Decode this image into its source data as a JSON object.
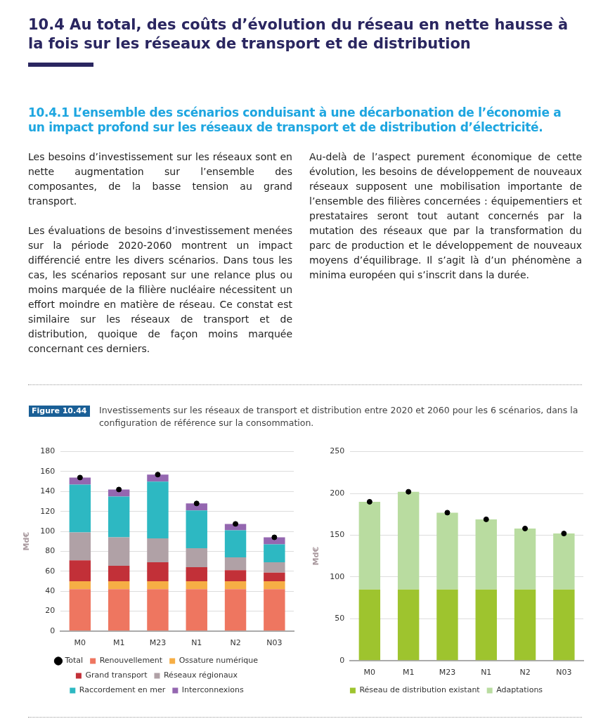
{
  "chart_data": [
    {
      "type": "bar",
      "title": "Investissements sur les réseaux de transport et distribution entre 2020 et 2060 pour les 6 scénarios, dans la configuration de référence sur la consommation.",
      "annotations": [
        "10.4   Au total, des coûts d’évolution du réseau en nette hausse à la fois sur les réseaux de transport et de distribution",
        "10.4.1  L’ensemble des scénarios conduisant à une décarbonation de l’économie a un impact profond sur les réseaux de transport et de distribution d’électricité.",
        "Les besoins d’investissement sur les réseaux sont en nette augmentation sur l’ensemble des composantes, de la basse tension au grand transport.",
        "Les évaluations de besoins d’investissement menées sur la période 2020-2060 montrent un impact différencié entre les divers scénarios. Dans tous les cas, les scénarios reposant sur une relance plus ou moins marquée de la filière nucléaire nécessitent un effort moindre en matière de réseau. Ce constat est similaire sur les réseaux de transport et de distribution, quoique de façon moins marquée concernant ces derniers.",
        "Au-delà de l’aspect purement économique de cette évolution, les besoins de développement de nouveaux réseaux supposent une mobilisation importante de l’ensemble des filières concernées : équipementiers et prestataires seront tout autant concernés par la mutation des réseaux que par la transformation du parc de production et le développement de nouveaux moyens d’équilibrage. Il s’agit là d’un phénomène a minima européen qui s’inscrit dans la durée.",
        "Figure 10.44"
      ],
      "categories": [
        "M0",
        "M1",
        "M23",
        "N1",
        "N2",
        "N03"
      ],
      "stacked": true,
      "ylabel": "Md€",
      "ylim": [
        0,
        180
      ],
      "yticks": [
        0,
        20,
        40,
        60,
        80,
        100,
        120,
        140,
        160,
        180
      ],
      "grid": "y",
      "legend": "bottom",
      "marker": "circle",
      "series": [
        {
          "name": "Renouvellement",
          "color": "#ee7660",
          "values": [
            42,
            42,
            42,
            42,
            42,
            42
          ]
        },
        {
          "name": "Ossature numérique",
          "color": "#f6ae45",
          "values": [
            8,
            8,
            8,
            8,
            8,
            8
          ]
        },
        {
          "name": "Grand transport",
          "color": "#c23038",
          "values": [
            21,
            15.5,
            19,
            14,
            11,
            8.5
          ]
        },
        {
          "name": "Réseaux régionaux",
          "color": "#b0a1a6",
          "values": [
            28,
            28.5,
            24,
            19,
            13,
            10.5
          ]
        },
        {
          "name": "Raccordement en mer",
          "color": "#2db8c2",
          "values": [
            48,
            41,
            57,
            38,
            27,
            18
          ]
        },
        {
          "name": "Interconnexions",
          "color": "#9467b0",
          "values": [
            7,
            7,
            7,
            7,
            6.5,
            7
          ]
        },
        {
          "name": "Total",
          "type": "scatter",
          "color": "#000000",
          "x": [
            "M0",
            "M1",
            "M23",
            "N1",
            "N2",
            "N03"
          ],
          "values": [
            154,
            142,
            157,
            128,
            107.5,
            94
          ]
        }
      ]
    },
    {
      "type": "bar",
      "categories": [
        "M0",
        "M1",
        "M23",
        "N1",
        "N2",
        "N03"
      ],
      "stacked": true,
      "ylabel": "Md€",
      "ylim": [
        0,
        250
      ],
      "yticks": [
        0,
        50,
        100,
        150,
        200,
        250
      ],
      "grid": "y",
      "legend": "bottom",
      "marker": "circle",
      "series": [
        {
          "name": "Réseau de distribution existant",
          "color": "#9ec42e",
          "values": [
            85,
            85,
            85,
            85,
            85,
            85
          ]
        },
        {
          "name": "Adaptations",
          "color": "#b9dca0",
          "values": [
            105,
            117,
            92,
            84,
            73,
            67
          ]
        },
        {
          "type": "scatter",
          "color": "#000000",
          "x": [
            "M0",
            "M1",
            "M23",
            "N1",
            "N2",
            "N03"
          ],
          "values": [
            190,
            202,
            177,
            169,
            158,
            152
          ]
        }
      ]
    }
  ]
}
